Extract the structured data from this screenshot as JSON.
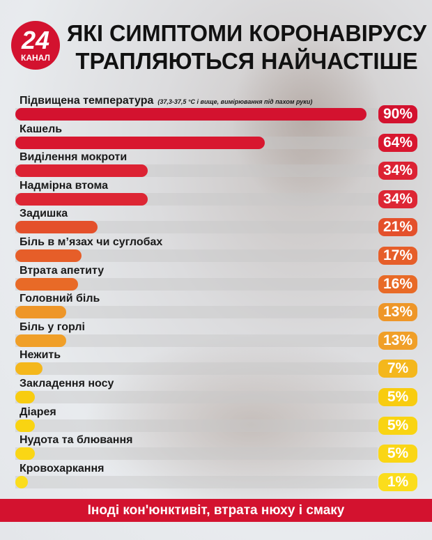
{
  "logo": {
    "number": "24",
    "text": "КАНАЛ"
  },
  "title": {
    "line1": "ЯКІ СИМПТОМИ КОРОНАВІРУСУ",
    "line2": "ТРАПЛЯЮТЬСЯ НАЙЧАСТІШЕ"
  },
  "chart_data": {
    "type": "bar",
    "orientation": "horizontal",
    "xlim": [
      0,
      100
    ],
    "title": "ЯКІ СИМПТОМИ КОРОНАВІРУСУ ТРАПЛЯЮТЬСЯ НАЙЧАСТІШЕ",
    "categories": [
      "Підвищена температура",
      "Кашель",
      "Виділення мокроти",
      "Надмірна втома",
      "Задишка",
      "Біль в м’язах чи суглобах",
      "Втрата апетиту",
      "Головний біль",
      "Біль у горлі",
      "Нежить",
      "Закладення носу",
      "Діарея",
      "Нудота та блювання",
      "Кровохаркання"
    ],
    "values": [
      90,
      64,
      34,
      34,
      21,
      17,
      16,
      13,
      13,
      7,
      5,
      5,
      5,
      1
    ],
    "data_labels": [
      "90%",
      "64%",
      "34%",
      "34%",
      "21%",
      "17%",
      "16%",
      "13%",
      "13%",
      "7%",
      "5%",
      "5%",
      "5%",
      "1%"
    ],
    "annotations": [
      "(37,3-37,5 °C і вище, вимірювання під пахом руки)"
    ],
    "colors": [
      "#d3122f",
      "#d8172f",
      "#dc2233",
      "#dd2634",
      "#e4502b",
      "#e65e29",
      "#e86a27",
      "#ee9628",
      "#f09f28",
      "#f4b71c",
      "#f8cc10",
      "#f9d412",
      "#fad615",
      "#fbdd1c"
    ]
  },
  "footer": "Іноді кон'юнктивіт, втрата нюху і смаку"
}
